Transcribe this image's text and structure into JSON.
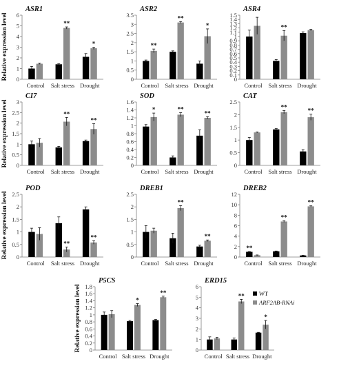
{
  "colors": {
    "wt": "#000000",
    "rnai": "#8c8c8c",
    "axis": "#7f7f7f"
  },
  "legend": {
    "wt": "WT",
    "rnai": "ARF2AB-RNAi"
  },
  "chart_data": [
    {
      "type": "bar",
      "gene": "ASR1",
      "ylabel": "Relative expression level",
      "categories": [
        "Control",
        "Salt stress",
        "Drought"
      ],
      "yticks": [
        "0",
        "1",
        "2",
        "3",
        "4",
        "5",
        "6"
      ],
      "ylim": [
        0,
        6
      ],
      "series": [
        {
          "name": "WT",
          "values": [
            1.0,
            1.4,
            2.1
          ],
          "errors": [
            0.2,
            0.05,
            0.3
          ]
        },
        {
          "name": "ARF2AB-RNAi",
          "values": [
            1.45,
            4.8,
            2.9
          ],
          "errors": [
            0.05,
            0.1,
            0.1
          ]
        }
      ],
      "significance": [
        [
          "",
          ""
        ],
        [
          "",
          "**"
        ],
        [
          "",
          "*"
        ]
      ]
    },
    {
      "type": "bar",
      "gene": "ASR2",
      "ylabel": "",
      "categories": [
        "Control",
        "Salt stress",
        "Drought"
      ],
      "yticks": [
        "0",
        "0.5",
        "1",
        "1.5",
        "2",
        "2.5",
        "3",
        "3.5"
      ],
      "ylim": [
        0,
        3.5
      ],
      "series": [
        {
          "name": "WT",
          "values": [
            1.0,
            1.5,
            0.85
          ],
          "errors": [
            0.05,
            0.05,
            0.15
          ]
        },
        {
          "name": "ARF2AB-RNAi",
          "values": [
            1.55,
            3.1,
            2.35
          ],
          "errors": [
            0.1,
            0.05,
            0.4
          ]
        }
      ],
      "significance": [
        [
          "",
          "**"
        ],
        [
          "",
          "**"
        ],
        [
          "",
          "*"
        ]
      ]
    },
    {
      "type": "bar",
      "gene": "ASR4",
      "ylabel": "",
      "categories": [
        "Control",
        "Salt stress",
        "Drought"
      ],
      "yticks": [
        "0",
        "0.1",
        "0.2",
        "0.3",
        "0.4",
        "0.5",
        "0.6",
        "0.7",
        "0.8",
        "0.9",
        "1",
        "1.1",
        "1.2",
        "1.3",
        "1.4",
        "1.5"
      ],
      "ylim": [
        0,
        1.5
      ],
      "series": [
        {
          "name": "WT",
          "values": [
            1.0,
            0.43,
            1.08
          ],
          "errors": [
            0.15,
            0.03,
            0.03
          ]
        },
        {
          "name": "ARF2AB-RNAi",
          "values": [
            1.25,
            1.02,
            1.15
          ],
          "errors": [
            0.2,
            0.12,
            0.02
          ]
        }
      ],
      "significance": [
        [
          "",
          ""
        ],
        [
          "",
          "**"
        ],
        [
          "",
          ""
        ]
      ]
    },
    {
      "type": "bar",
      "gene": "CI7",
      "ylabel": "Relative expression level",
      "categories": [
        "Control",
        "Salt stress",
        "Drought"
      ],
      "yticks": [
        "0",
        "0.5",
        "1",
        "1.5",
        "2",
        "2.5",
        "3"
      ],
      "ylim": [
        0,
        3
      ],
      "series": [
        {
          "name": "WT",
          "values": [
            1.0,
            0.85,
            1.15
          ],
          "errors": [
            0.15,
            0.05,
            0.05
          ]
        },
        {
          "name": "ARF2AB-RNAi",
          "values": [
            1.07,
            2.07,
            1.72
          ],
          "errors": [
            0.2,
            0.2,
            0.25
          ]
        }
      ],
      "significance": [
        [
          "",
          ""
        ],
        [
          "",
          "**"
        ],
        [
          "",
          "**"
        ]
      ]
    },
    {
      "type": "bar",
      "gene": "SOD",
      "ylabel": "",
      "categories": [
        "Control",
        "Salt stress",
        "Drought"
      ],
      "yticks": [
        "0",
        "0.2",
        "0.4",
        "0.6",
        "0.8",
        "1",
        "1.2",
        "1.4",
        "1.6"
      ],
      "ylim": [
        0,
        1.6
      ],
      "series": [
        {
          "name": "WT",
          "values": [
            0.98,
            0.2,
            0.75
          ],
          "errors": [
            0.05,
            0.04,
            0.15
          ]
        },
        {
          "name": "ARF2AB-RNAi",
          "values": [
            1.22,
            1.28,
            1.2
          ],
          "errors": [
            0.1,
            0.05,
            0.03
          ]
        }
      ],
      "significance": [
        [
          "",
          "*"
        ],
        [
          "",
          "**"
        ],
        [
          "",
          "**"
        ]
      ]
    },
    {
      "type": "bar",
      "gene": "CAT",
      "ylabel": "",
      "categories": [
        "Control",
        "Salt stress",
        "Drought"
      ],
      "yticks": [
        "0",
        "0.5",
        "1",
        "1.5",
        "2",
        "2.5"
      ],
      "ylim": [
        0,
        2.5
      ],
      "series": [
        {
          "name": "WT",
          "values": [
            1.0,
            1.42,
            0.55
          ],
          "errors": [
            0.1,
            0.03,
            0.07
          ]
        },
        {
          "name": "ARF2AB-RNAi",
          "values": [
            1.3,
            2.1,
            1.9
          ],
          "errors": [
            0.02,
            0.06,
            0.12
          ]
        }
      ],
      "significance": [
        [
          "",
          ""
        ],
        [
          "",
          "**"
        ],
        [
          "",
          "**"
        ]
      ]
    },
    {
      "type": "bar",
      "gene": "POD",
      "ylabel": "Relative expression level",
      "categories": [
        "Control",
        "Salt stress",
        "Drought"
      ],
      "yticks": [
        "0",
        "0.5",
        "1",
        "1.5",
        "2",
        "2.5"
      ],
      "ylim": [
        0,
        2.5
      ],
      "series": [
        {
          "name": "WT",
          "values": [
            1.0,
            1.35,
            1.9
          ],
          "errors": [
            0.15,
            0.25,
            0.1
          ]
        },
        {
          "name": "ARF2AB-RNAi",
          "values": [
            0.92,
            0.3,
            0.58
          ],
          "errors": [
            0.25,
            0.1,
            0.07
          ]
        }
      ],
      "significance": [
        [
          "",
          ""
        ],
        [
          "",
          "**"
        ],
        [
          "",
          "**"
        ]
      ]
    },
    {
      "type": "bar",
      "gene": "DREB1",
      "ylabel": "",
      "categories": [
        "Control",
        "Salt stress",
        "Drought"
      ],
      "yticks": [
        "0",
        "0.5",
        "1",
        "1.5",
        "2",
        "2.5"
      ],
      "ylim": [
        0,
        2.5
      ],
      "series": [
        {
          "name": "WT",
          "values": [
            1.0,
            0.75,
            0.42
          ],
          "errors": [
            0.25,
            0.2,
            0.05
          ]
        },
        {
          "name": "ARF2AB-RNAi",
          "values": [
            1.05,
            1.95,
            0.65
          ],
          "errors": [
            0.1,
            0.1,
            0.03
          ]
        }
      ],
      "significance": [
        [
          "",
          ""
        ],
        [
          "",
          "**"
        ],
        [
          "",
          "**"
        ]
      ]
    },
    {
      "type": "bar",
      "gene": "DREB2",
      "ylabel": "",
      "categories": [
        "Control",
        "Salt stress",
        "Drought"
      ],
      "yticks": [
        "0",
        "2",
        "4",
        "6",
        "8",
        "10",
        "12"
      ],
      "ylim": [
        0,
        12
      ],
      "series": [
        {
          "name": "WT",
          "values": [
            1.0,
            1.1,
            0.3
          ],
          "errors": [
            0.05,
            0.05,
            0.03
          ]
        },
        {
          "name": "ARF2AB-RNAi",
          "values": [
            0.35,
            6.8,
            9.7
          ],
          "errors": [
            0.05,
            0.15,
            0.1
          ]
        }
      ],
      "significance": [
        [
          "**",
          ""
        ],
        [
          "",
          "**"
        ],
        [
          "",
          "**"
        ]
      ]
    },
    {
      "type": "bar",
      "gene": "P5CS",
      "ylabel": "Relative expression level",
      "categories": [
        "Control",
        "Salt stress",
        "Drought"
      ],
      "yticks": [
        "0",
        "0.2",
        "0.4",
        "0.6",
        "0.8",
        "1",
        "1.2",
        "1.4",
        "1.6",
        "1.8"
      ],
      "ylim": [
        0,
        1.8
      ],
      "series": [
        {
          "name": "WT",
          "values": [
            1.0,
            0.82,
            0.85
          ],
          "errors": [
            0.08,
            0.02,
            0.02
          ]
        },
        {
          "name": "ARF2AB-RNAi",
          "values": [
            1.02,
            1.28,
            1.5
          ],
          "errors": [
            0.1,
            0.04,
            0.03
          ]
        }
      ],
      "significance": [
        [
          "",
          ""
        ],
        [
          "",
          "*"
        ],
        [
          "",
          "**"
        ]
      ]
    },
    {
      "type": "bar",
      "gene": "ERD15",
      "ylabel": "",
      "categories": [
        "Control",
        "Salt stress",
        "Drought"
      ],
      "yticks": [
        "0",
        "1",
        "2",
        "3",
        "4",
        "5",
        "6"
      ],
      "ylim": [
        0,
        6
      ],
      "series": [
        {
          "name": "WT",
          "values": [
            1.0,
            1.0,
            1.65
          ],
          "errors": [
            0.25,
            0.15,
            0.03
          ]
        },
        {
          "name": "ARF2AB-RNAi",
          "values": [
            1.1,
            4.6,
            2.4
          ],
          "errors": [
            0.1,
            0.2,
            0.4
          ]
        }
      ],
      "significance": [
        [
          "",
          ""
        ],
        [
          "",
          "**"
        ],
        [
          "",
          "*"
        ]
      ]
    }
  ]
}
